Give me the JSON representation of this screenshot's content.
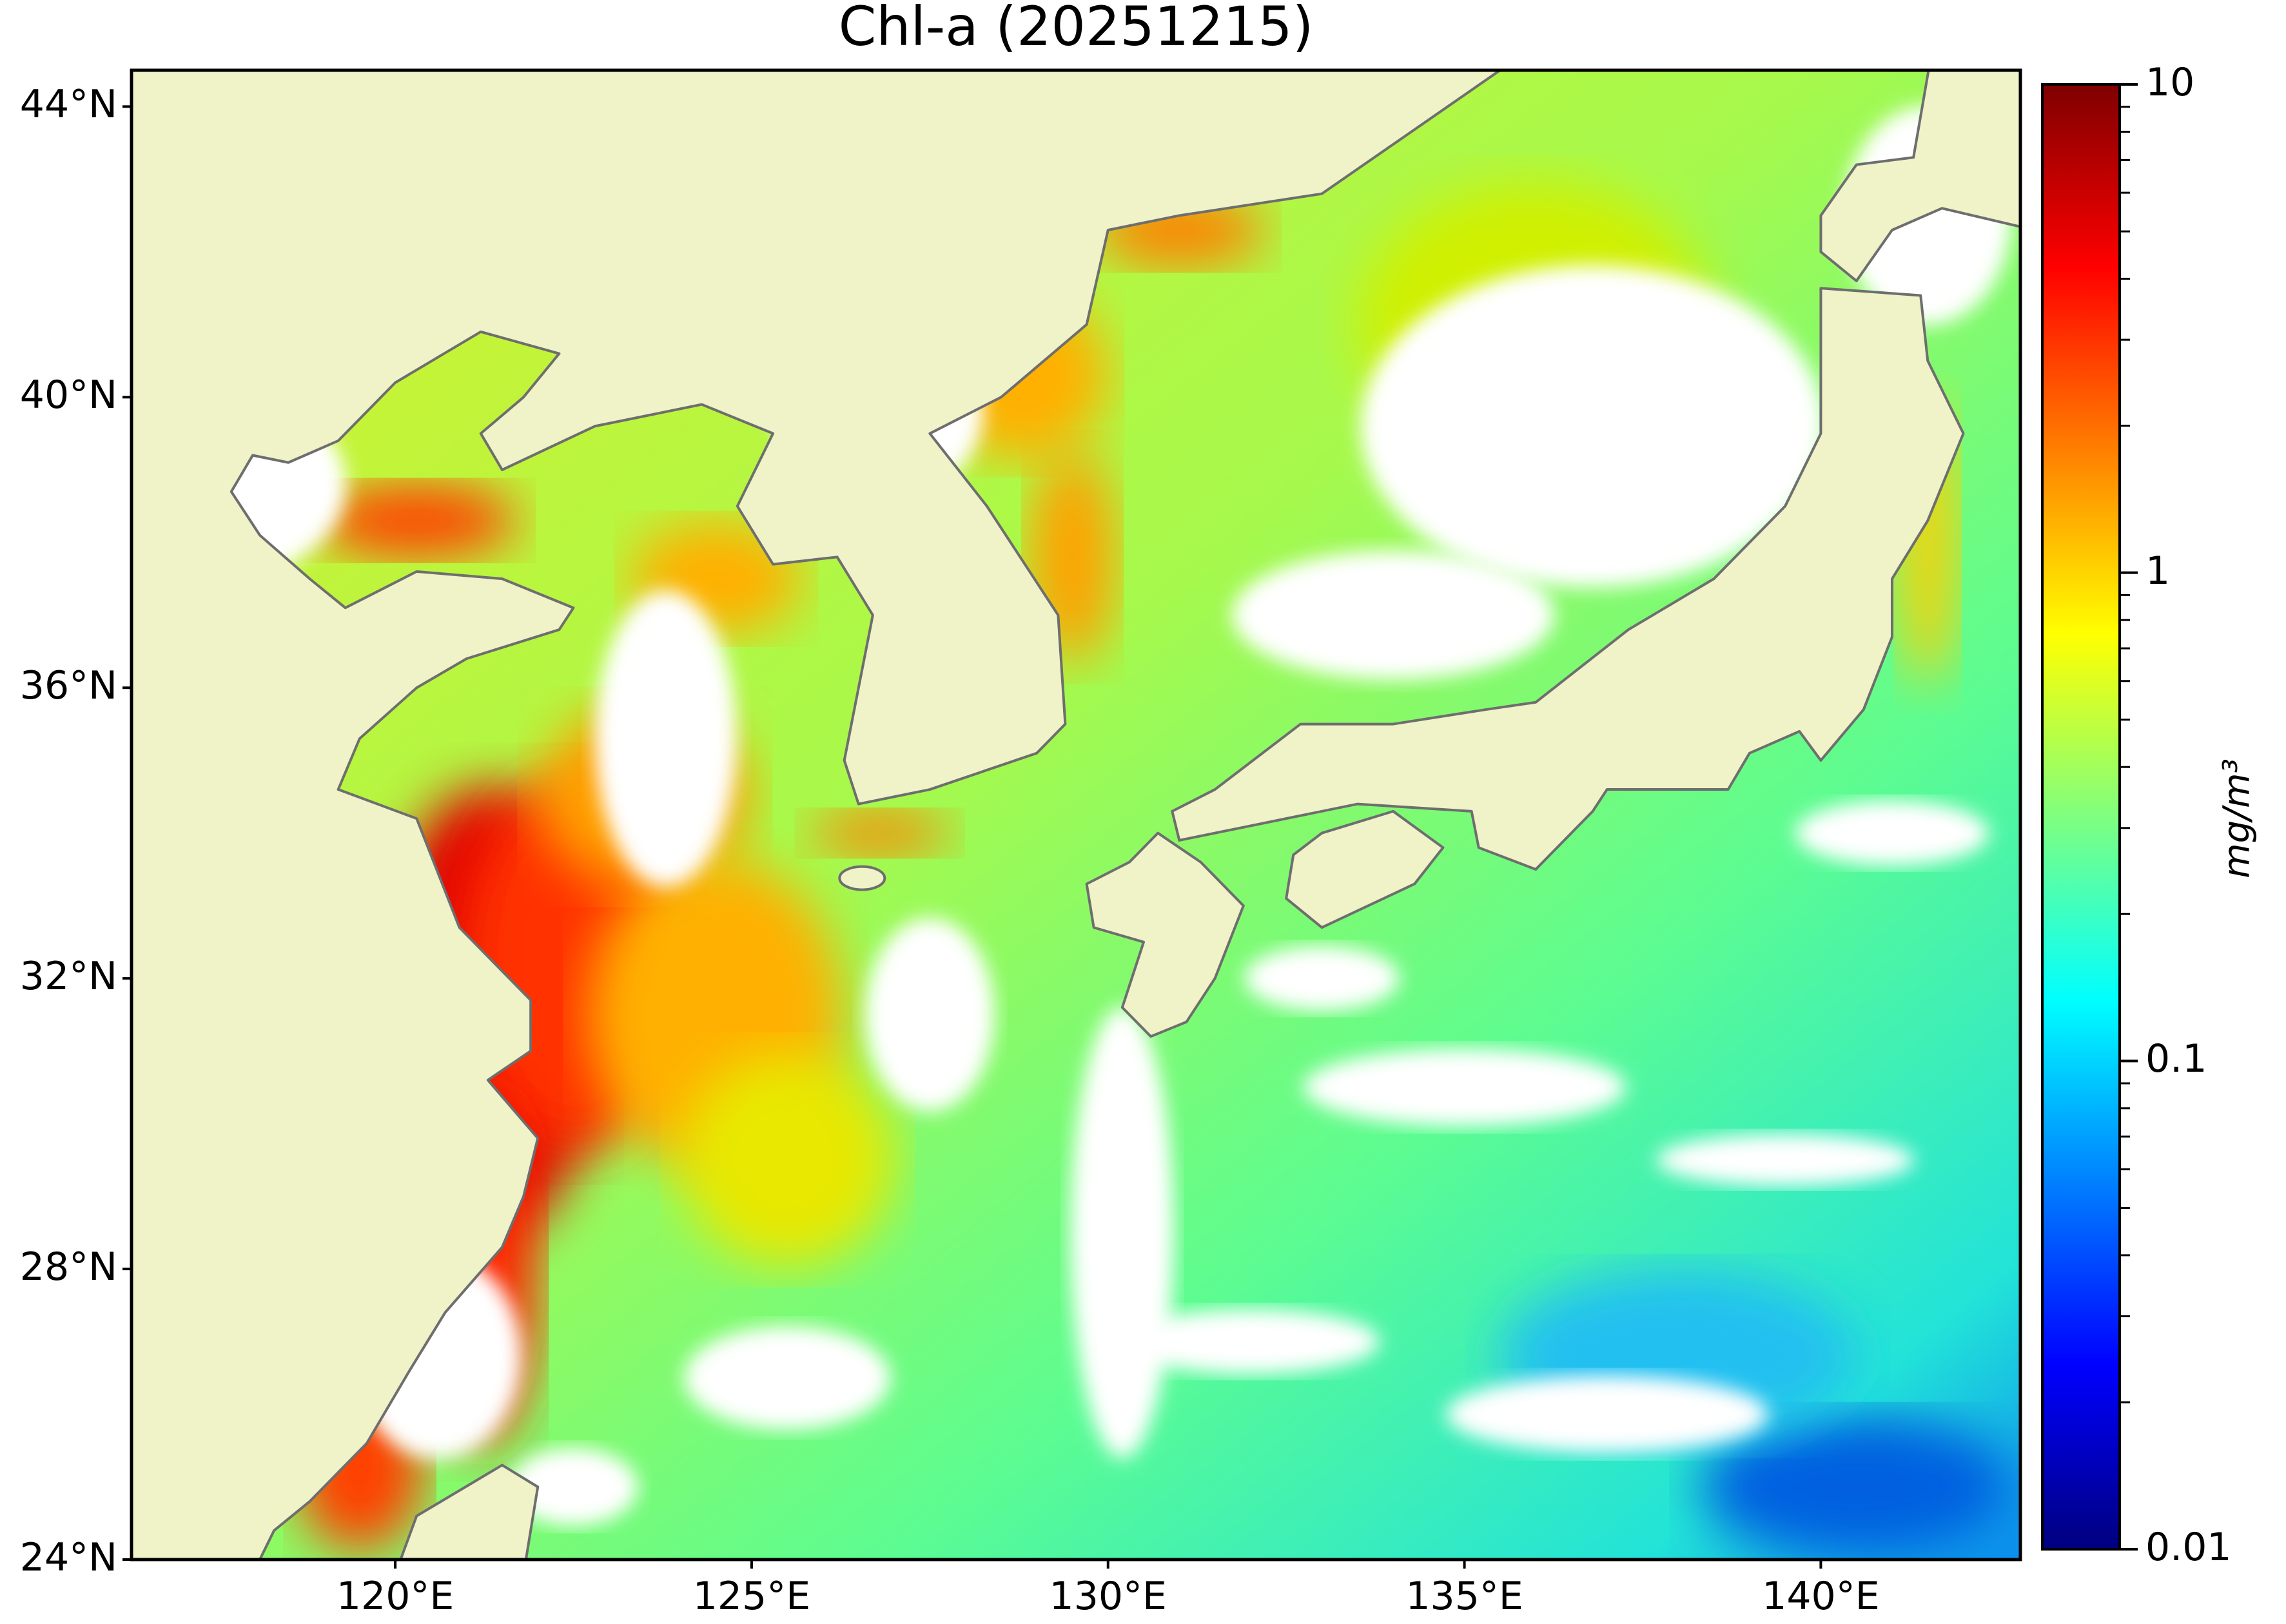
{
  "title": "Chl-a (20251215)",
  "map": {
    "extent_lon": [
      116.3,
      142.8
    ],
    "extent_lat": [
      24,
      44.5
    ],
    "land_color": "#f0f2c8",
    "coast_color": "#6e6e6e",
    "no_data_color": "#ffffff",
    "lon_ticks": [
      {
        "value": 120,
        "label": "120°E"
      },
      {
        "value": 125,
        "label": "125°E"
      },
      {
        "value": 130,
        "label": "130°E"
      },
      {
        "value": 135,
        "label": "135°E"
      },
      {
        "value": 140,
        "label": "140°E"
      }
    ],
    "lat_ticks": [
      {
        "value": 24,
        "label": "24°N"
      },
      {
        "value": 28,
        "label": "28°N"
      },
      {
        "value": 32,
        "label": "32°N"
      },
      {
        "value": 36,
        "label": "36°N"
      },
      {
        "value": 40,
        "label": "40°N"
      },
      {
        "value": 44,
        "label": "44°N"
      }
    ]
  },
  "colorbar": {
    "colormap": "jet",
    "scale": "log",
    "range": [
      0.01,
      10
    ],
    "label": "mg/m³",
    "ticks": [
      {
        "value": 0.01,
        "label": "0.01"
      },
      {
        "value": 0.1,
        "label": "0.1"
      },
      {
        "value": 1,
        "label": "1"
      },
      {
        "value": 10,
        "label": "10"
      }
    ]
  }
}
